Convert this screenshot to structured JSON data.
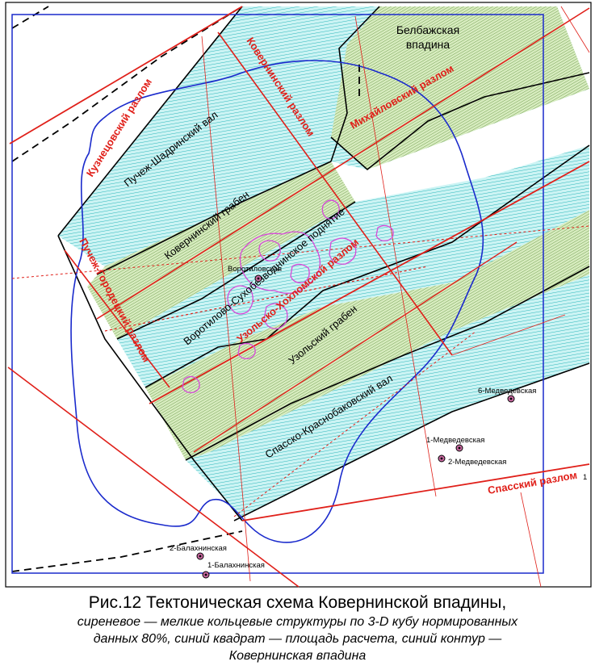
{
  "caption": {
    "title": "Рис.12 Тектоническая схема Ковернинской впадины,",
    "subtitle_line1": "сиреневое — мелкие кольцевые структуры по 3-D кубу нормированных",
    "subtitle_line2": "данных 80%, синий квадрат — площадь расчета, синий контур —",
    "subtitle_line3": "Ковернинская впадина"
  },
  "structures": {
    "belbazh": [
      "Белбажская",
      "впадина"
    ],
    "puchezh_shadrinsky": "Пучеж-Шадринский вал",
    "koverninsky_graben": "Ковернинский грабен",
    "vorotilovo_rise": "Воротилово-Сухобезводнинское поднятие",
    "uzolsky_graben": "Узольский грабен",
    "spassko_val": "Спасско-Краснобаковский вал"
  },
  "faults": {
    "kuznetsovsky": "Кузнецовский разлом",
    "koverninsky": "Ковернинский разлом",
    "mikhailovsky": "Михайловский разлом",
    "puchezh_gorodetsky": "Пучеж-Городецкий разлом",
    "uzolsko_khokhlomsky": "Узольско-Хохломской разлом",
    "spassky": "Спасский разлом"
  },
  "wells": {
    "vorotilovskaya": "Воротиловская",
    "medvedevskaya_6": "6-Медведевская",
    "medvedevskaya_1": "1-Медведевская",
    "medvedevskaya_2": "2-Медведевская",
    "balakhninskaya_2": "2-Балахнинская",
    "balakhninskaya_1": "1-Балахнинская"
  },
  "edge_mark": "1",
  "colors": {
    "cyan_zone": "#ccf4f4",
    "cyan_hatch": "#2ab4b8",
    "green_zone": "#d8ecc0",
    "green_hatch": "#6a9a48",
    "fault_red": "#e0201a",
    "boundary_blue": "#1a2acc",
    "ring_violet": "#d64ad8"
  }
}
